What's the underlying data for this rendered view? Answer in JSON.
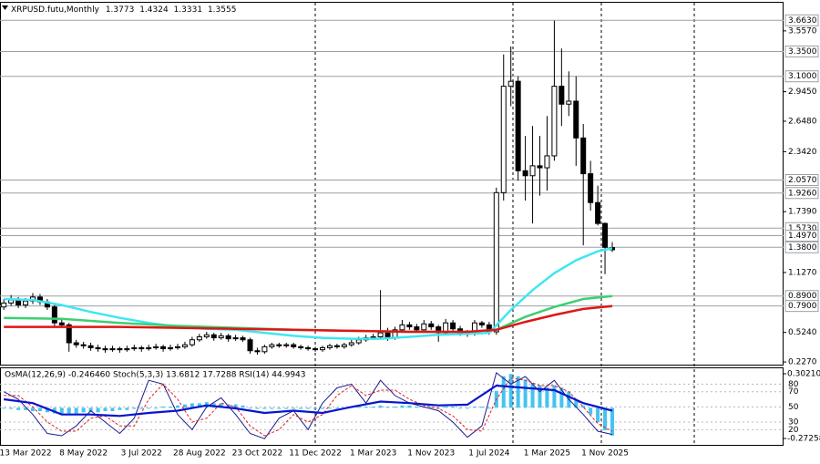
{
  "chart_data": [
    {
      "type": "candlestick",
      "title": "XRPUSD.futu,Monthly",
      "categories": [
        null,
        null,
        null,
        "13 Mar 2022",
        null,
        null,
        null,
        null,
        null,
        null,
        null,
        "8 May 2022",
        null,
        null,
        null,
        null,
        null,
        null,
        null,
        "3 Jul 2022",
        null,
        null,
        null,
        null,
        null,
        null,
        null,
        "28 Aug 2022",
        null,
        null,
        null,
        null,
        null,
        null,
        null,
        "23 Oct 2022",
        null,
        null,
        null,
        null,
        null,
        null,
        null,
        "11 Dec 2022",
        null,
        null,
        null,
        null,
        null,
        null,
        null,
        "1 Mar 2023",
        null,
        null,
        null,
        null,
        null,
        null,
        null,
        "1 Nov 2023",
        null,
        null,
        null,
        null,
        null,
        null,
        null,
        "1 Jul 2024",
        null,
        null,
        null,
        null,
        null,
        null,
        null,
        "1 Mar 2025",
        null,
        null,
        null,
        null,
        null,
        null,
        null,
        "1 Nov 2025",
        null
      ],
      "open": [
        0.78,
        0.82,
        0.85,
        0.8,
        0.84,
        0.88,
        0.83,
        0.78,
        0.62,
        0.6,
        0.42,
        0.4,
        0.39,
        0.37,
        0.36,
        0.35,
        0.36,
        0.35,
        0.36,
        0.37,
        0.36,
        0.37,
        0.38,
        0.36,
        0.37,
        0.38,
        0.4,
        0.45,
        0.48,
        0.5,
        0.47,
        0.49,
        0.46,
        0.47,
        0.45,
        0.34,
        0.33,
        0.38,
        0.4,
        0.39,
        0.4,
        0.38,
        0.37,
        0.36,
        0.35,
        0.37,
        0.39,
        0.38,
        0.4,
        0.42,
        0.45,
        0.47,
        0.48,
        0.52,
        0.47,
        0.55,
        0.6,
        0.58,
        0.55,
        0.61,
        0.58,
        0.52,
        0.62,
        0.56,
        0.52,
        0.51,
        0.62,
        0.6,
        0.53,
        1.93,
        3.0,
        3.05,
        2.15,
        2.1,
        2.2,
        2.18,
        2.3,
        3.0,
        2.82,
        2.85,
        2.48,
        2.12,
        1.83,
        1.62,
        1.3773
      ],
      "high": [
        0.86,
        0.9,
        0.88,
        0.87,
        0.92,
        0.91,
        0.86,
        0.8,
        0.66,
        0.62,
        0.45,
        0.43,
        0.42,
        0.4,
        0.39,
        0.39,
        0.38,
        0.39,
        0.4,
        0.39,
        0.4,
        0.41,
        0.4,
        0.4,
        0.41,
        0.43,
        0.48,
        0.51,
        0.53,
        0.52,
        0.52,
        0.51,
        0.5,
        0.49,
        0.47,
        0.37,
        0.4,
        0.42,
        0.42,
        0.42,
        0.42,
        0.4,
        0.39,
        0.38,
        0.39,
        0.41,
        0.41,
        0.42,
        0.45,
        0.48,
        0.5,
        0.51,
        0.95,
        0.57,
        0.58,
        0.65,
        0.63,
        0.61,
        0.65,
        0.64,
        0.6,
        0.66,
        0.65,
        0.59,
        0.55,
        0.65,
        0.64,
        0.63,
        1.98,
        3.32,
        3.4,
        3.1,
        2.5,
        2.6,
        2.5,
        2.7,
        3.66,
        3.38,
        3.15,
        3.1,
        2.62,
        2.25,
        2.0,
        1.63,
        1.4324
      ],
      "low": [
        0.75,
        0.79,
        0.77,
        0.77,
        0.81,
        0.8,
        0.75,
        0.58,
        0.57,
        0.33,
        0.37,
        0.36,
        0.34,
        0.33,
        0.32,
        0.33,
        0.32,
        0.33,
        0.34,
        0.33,
        0.34,
        0.35,
        0.33,
        0.34,
        0.35,
        0.36,
        0.38,
        0.43,
        0.46,
        0.44,
        0.45,
        0.43,
        0.44,
        0.43,
        0.31,
        0.3,
        0.31,
        0.36,
        0.37,
        0.37,
        0.36,
        0.35,
        0.34,
        0.33,
        0.33,
        0.35,
        0.36,
        0.36,
        0.38,
        0.4,
        0.43,
        0.45,
        0.46,
        0.44,
        0.45,
        0.52,
        0.55,
        0.52,
        0.53,
        0.55,
        0.43,
        0.5,
        0.53,
        0.49,
        0.48,
        0.49,
        0.57,
        0.5,
        0.5,
        1.85,
        2.8,
        2.05,
        1.85,
        1.62,
        1.9,
        1.95,
        2.25,
        2.6,
        2.7,
        2.2,
        1.4,
        1.75,
        1.6,
        1.11,
        1.3331
      ],
      "close": [
        0.82,
        0.85,
        0.8,
        0.84,
        0.88,
        0.83,
        0.78,
        0.62,
        0.6,
        0.42,
        0.4,
        0.39,
        0.37,
        0.36,
        0.35,
        0.36,
        0.35,
        0.36,
        0.37,
        0.36,
        0.37,
        0.38,
        0.36,
        0.37,
        0.38,
        0.4,
        0.45,
        0.48,
        0.5,
        0.47,
        0.49,
        0.46,
        0.47,
        0.45,
        0.34,
        0.33,
        0.38,
        0.4,
        0.39,
        0.4,
        0.38,
        0.37,
        0.36,
        0.35,
        0.37,
        0.39,
        0.38,
        0.4,
        0.42,
        0.45,
        0.47,
        0.48,
        0.52,
        0.47,
        0.55,
        0.6,
        0.58,
        0.55,
        0.61,
        0.58,
        0.52,
        0.62,
        0.56,
        0.52,
        0.51,
        0.62,
        0.6,
        0.53,
        1.93,
        3.0,
        3.05,
        2.15,
        2.1,
        2.2,
        2.18,
        2.3,
        3.0,
        2.82,
        2.85,
        2.48,
        2.12,
        1.83,
        1.62,
        1.38,
        1.3555
      ],
      "up_color": "#ffffff",
      "down_color": "#000000",
      "series": [
        {
          "color": "#3fe6f2",
          "x": [
            0,
            4,
            8,
            12,
            16,
            20,
            24,
            28,
            32,
            36,
            40,
            44,
            48,
            52,
            56,
            60,
            64,
            67,
            70,
            73,
            76,
            79,
            82,
            84
          ],
          "values": [
            0.86,
            0.85,
            0.8,
            0.73,
            0.67,
            0.62,
            0.58,
            0.56,
            0.55,
            0.52,
            0.49,
            0.47,
            0.46,
            0.46,
            0.48,
            0.5,
            0.51,
            0.52,
            0.75,
            0.95,
            1.12,
            1.25,
            1.34,
            1.37
          ]
        },
        {
          "color": "#3ccf73",
          "x": [
            0,
            8,
            16,
            24,
            32,
            40,
            48,
            56,
            64,
            68,
            72,
            76,
            80,
            84
          ],
          "values": [
            0.67,
            0.66,
            0.62,
            0.59,
            0.57,
            0.55,
            0.54,
            0.53,
            0.53,
            0.55,
            0.68,
            0.78,
            0.86,
            0.89
          ]
        },
        {
          "color": "#e01515",
          "x": [
            0,
            8,
            16,
            24,
            32,
            40,
            48,
            56,
            64,
            68,
            72,
            76,
            80,
            84
          ],
          "values": [
            0.58,
            0.58,
            0.58,
            0.57,
            0.56,
            0.55,
            0.54,
            0.53,
            0.53,
            0.55,
            0.63,
            0.7,
            0.76,
            0.79
          ]
        }
      ],
      "ylim": [
        0.2,
        3.84
      ],
      "yticks": [
        {
          "value": 3.557,
          "label": "3.5570"
        },
        {
          "value": 2.945,
          "label": "2.9450"
        },
        {
          "value": 2.648,
          "label": "2.6480"
        },
        {
          "value": 2.342,
          "label": "2.3420"
        },
        {
          "value": 1.739,
          "label": "1.7390"
        },
        {
          "value": 1.127,
          "label": "1.1270"
        },
        {
          "value": 0.524,
          "label": "0.5240"
        },
        {
          "value": 0.227,
          "label": "0.2270"
        }
      ],
      "levels": [
        {
          "value": 3.663,
          "label": "3.6630"
        },
        {
          "value": 3.35,
          "label": "3.3500"
        },
        {
          "value": 3.1,
          "label": "3.1000"
        },
        {
          "value": 2.057,
          "label": "2.0570"
        },
        {
          "value": 1.926,
          "label": "1.9260"
        },
        {
          "value": 1.573,
          "label": "1.5730"
        },
        {
          "value": 1.497,
          "label": "1.4970"
        },
        {
          "value": 1.38,
          "label": "1.3800"
        },
        {
          "value": 0.89,
          "label": "0.8900"
        },
        {
          "value": 0.79,
          "label": "0.7900"
        }
      ],
      "level_color": "#9aa0a6"
    },
    {
      "type": "oscillator",
      "title": "OsMA(12,26,9) -0.246460 Stoch(5,3,3) 13.6812 17.7288 RSI(14) 44.9943",
      "ylim": [
        0,
        100
      ],
      "yticks": [
        20,
        30,
        50,
        70,
        80
      ],
      "y2lim": [
        -0.272581,
        0.302103
      ],
      "y2ticks": [
        -0.272581,
        0.302103
      ],
      "series": [
        {
          "type": "bar",
          "axis": "y2",
          "color": "#45c3f0",
          "values": [
            0,
            -0.01,
            -0.02,
            -0.02,
            -0.03,
            -0.03,
            -0.04,
            -0.05,
            -0.05,
            -0.05,
            -0.05,
            -0.04,
            -0.04,
            -0.04,
            -0.03,
            -0.03,
            -0.02,
            -0.02,
            -0.01,
            -0.01,
            0,
            0,
            0.01,
            0.01,
            0.02,
            0.03,
            0.04,
            0.04,
            0.05,
            0.04,
            0.04,
            0.03,
            0.03,
            0.02,
            0,
            -0.01,
            -0.01,
            -0.01,
            -0.01,
            -0.01,
            -0.01,
            -0.01,
            -0.01,
            -0.01,
            -0.01,
            0,
            0,
            0,
            0.01,
            0.01,
            0.01,
            0.01,
            0.02,
            0.01,
            0.01,
            0.02,
            0.02,
            0.01,
            0.01,
            0.01,
            0,
            0.01,
            0.01,
            0,
            0,
            0.01,
            0.01,
            0,
            0.15,
            0.28,
            0.3,
            0.28,
            0.25,
            0.22,
            0.2,
            0.18,
            0.2,
            0.18,
            0.14,
            0.08,
            0.02,
            -0.06,
            -0.13,
            -0.2,
            -0.24646
          ]
        },
        {
          "type": "line",
          "color": "#1c1c8f",
          "width": 1,
          "x": [
            0,
            2,
            4,
            6,
            8,
            10,
            12,
            14,
            16,
            18,
            20,
            22,
            24,
            26,
            28,
            30,
            32,
            34,
            36,
            38,
            40,
            42,
            44,
            46,
            48,
            50,
            52,
            54,
            56,
            58,
            60,
            62,
            64,
            66,
            68,
            70,
            72,
            74,
            76,
            78,
            80,
            82,
            84
          ],
          "values": [
            70,
            60,
            40,
            15,
            12,
            25,
            45,
            30,
            15,
            35,
            85,
            80,
            40,
            20,
            50,
            62,
            40,
            15,
            8,
            35,
            45,
            20,
            55,
            75,
            80,
            55,
            85,
            65,
            55,
            50,
            45,
            30,
            10,
            25,
            95,
            80,
            90,
            70,
            85,
            60,
            40,
            18,
            13.6812
          ]
        },
        {
          "type": "line",
          "color": "#e02020",
          "width": 1,
          "dashed": true,
          "x": [
            0,
            2,
            4,
            6,
            8,
            10,
            12,
            14,
            16,
            18,
            20,
            22,
            24,
            26,
            28,
            30,
            32,
            34,
            36,
            38,
            40,
            42,
            44,
            46,
            48,
            50,
            52,
            54,
            56,
            58,
            60,
            62,
            64,
            66,
            68,
            70,
            72,
            74,
            76,
            78,
            80,
            82,
            84
          ],
          "values": [
            65,
            65,
            50,
            30,
            18,
            18,
            35,
            38,
            25,
            25,
            60,
            80,
            60,
            30,
            35,
            55,
            50,
            25,
            12,
            20,
            40,
            30,
            40,
            65,
            78,
            65,
            72,
            72,
            60,
            52,
            48,
            38,
            20,
            18,
            60,
            88,
            85,
            78,
            78,
            70,
            50,
            28,
            17.7288
          ]
        },
        {
          "type": "line",
          "color": "#0a14cc",
          "width": 2.2,
          "x": [
            0,
            4,
            8,
            12,
            16,
            20,
            24,
            28,
            32,
            36,
            40,
            44,
            48,
            52,
            56,
            60,
            64,
            68,
            72,
            76,
            80,
            84
          ],
          "values": [
            60,
            55,
            40,
            40,
            38,
            42,
            45,
            52,
            48,
            42,
            45,
            42,
            50,
            57,
            55,
            52,
            53,
            78,
            75,
            72,
            55,
            44.9943
          ]
        }
      ]
    }
  ]
}
